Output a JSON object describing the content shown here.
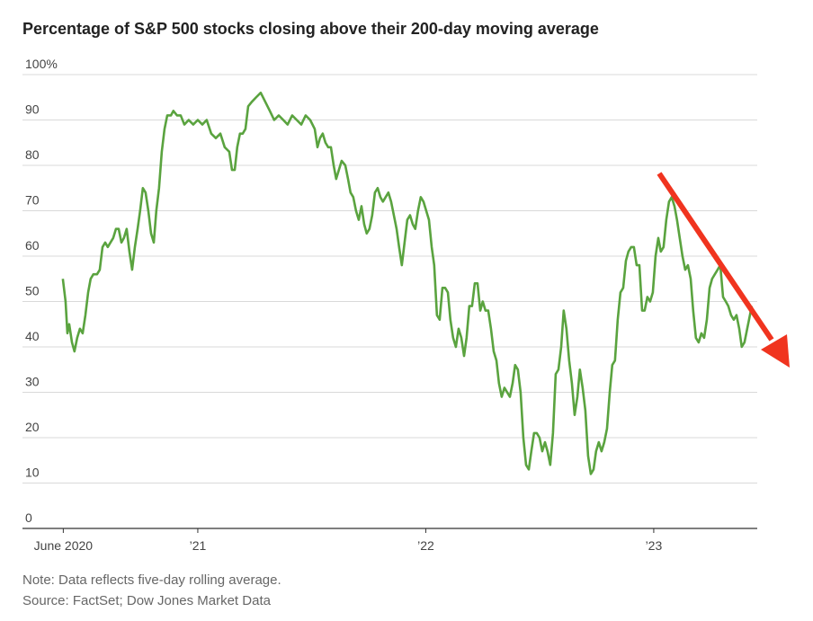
{
  "chart_data": {
    "type": "line",
    "title": "Percentage of S&P 500 stocks closing above their 200-day moving average",
    "notes": [
      "Note: Data reflects five-day rolling average.",
      "Source: FactSet; Dow Jones Market Data"
    ],
    "xlim": [
      2020.231,
      2023.454
    ],
    "xticks": [
      {
        "value": 2020.41,
        "label": "June 2020"
      },
      {
        "value": 2021,
        "label": "’21"
      },
      {
        "value": 2022,
        "label": "’22"
      },
      {
        "value": 2023,
        "label": "’23"
      }
    ],
    "ylim": [
      0,
      100
    ],
    "yticks": [
      0,
      10,
      20,
      30,
      40,
      50,
      60,
      70,
      80,
      90,
      {
        "value": 100,
        "label": "100%"
      }
    ],
    "grid": true,
    "x": [
      2020.408,
      2020.42,
      2020.428,
      2020.436,
      2020.448,
      2020.459,
      2020.471,
      2020.483,
      2020.495,
      2020.507,
      2020.519,
      2020.53,
      2020.542,
      2020.558,
      2020.57,
      2020.582,
      2020.594,
      2020.605,
      2020.617,
      2020.629,
      2020.641,
      2020.653,
      2020.665,
      2020.676,
      2020.688,
      2020.7,
      2020.712,
      2020.724,
      2020.736,
      2020.747,
      2020.759,
      2020.771,
      2020.783,
      2020.795,
      2020.807,
      2020.818,
      2020.83,
      2020.842,
      2020.854,
      2020.866,
      2020.882,
      2020.893,
      2020.909,
      2020.925,
      2020.941,
      2020.96,
      2020.98,
      2021.0,
      2021.02,
      2021.039,
      2021.059,
      2021.079,
      2021.099,
      2021.118,
      2021.138,
      2021.15,
      2021.162,
      2021.173,
      2021.185,
      2021.197,
      2021.209,
      2021.221,
      2021.237,
      2021.256,
      2021.276,
      2021.296,
      2021.316,
      2021.335,
      2021.355,
      2021.375,
      2021.394,
      2021.414,
      2021.434,
      2021.454,
      2021.473,
      2021.493,
      2021.513,
      2021.525,
      2021.536,
      2021.548,
      2021.56,
      2021.572,
      2021.584,
      2021.596,
      2021.607,
      2021.619,
      2021.631,
      2021.647,
      2021.659,
      2021.67,
      2021.682,
      2021.694,
      2021.706,
      2021.718,
      2021.73,
      2021.741,
      2021.753,
      2021.765,
      2021.777,
      2021.789,
      2021.801,
      2021.812,
      2021.824,
      2021.836,
      2021.848,
      2021.86,
      2021.872,
      2021.883,
      2021.895,
      2021.907,
      2021.919,
      2021.931,
      2021.943,
      2021.954,
      2021.966,
      2021.978,
      2021.99,
      2022.002,
      2022.014,
      2022.026,
      2022.037,
      2022.049,
      2022.061,
      2022.073,
      2022.085,
      2022.097,
      2022.108,
      2022.12,
      2022.132,
      2022.144,
      2022.156,
      2022.168,
      2022.179,
      2022.191,
      2022.203,
      2022.215,
      2022.227,
      2022.239,
      2022.25,
      2022.262,
      2022.274,
      2022.286,
      2022.298,
      2022.31,
      2022.321,
      2022.333,
      2022.345,
      2022.357,
      2022.369,
      2022.381,
      2022.392,
      2022.404,
      2022.416,
      2022.428,
      2022.44,
      2022.452,
      2022.463,
      2022.475,
      2022.487,
      2022.499,
      2022.511,
      2022.523,
      2022.534,
      2022.546,
      2022.558,
      2022.57,
      2022.582,
      2022.594,
      2022.605,
      2022.617,
      2022.629,
      2022.641,
      2022.653,
      2022.665,
      2022.676,
      2022.688,
      2022.7,
      2022.712,
      2022.724,
      2022.736,
      2022.747,
      2022.759,
      2022.771,
      2022.783,
      2022.795,
      2022.807,
      2022.818,
      2022.83,
      2022.842,
      2022.854,
      2022.866,
      2022.878,
      2022.889,
      2022.901,
      2022.913,
      2022.925,
      2022.937,
      2022.949,
      2022.96,
      2022.972,
      2022.984,
      2022.996,
      2023.008,
      2023.02,
      2023.031,
      2023.043,
      2023.055,
      2023.067,
      2023.079,
      2023.091,
      2023.102,
      2023.114,
      2023.126,
      2023.138,
      2023.15,
      2023.162,
      2023.173,
      2023.185,
      2023.197,
      2023.209,
      2023.221,
      2023.233,
      2023.245,
      2023.256,
      2023.268,
      2023.28,
      2023.292,
      2023.304,
      2023.316,
      2023.327,
      2023.339,
      2023.351,
      2023.363,
      2023.375,
      2023.386,
      2023.398,
      2023.41,
      2023.422,
      2023.43
    ],
    "series": [
      {
        "color": "#5aa33f",
        "values": [
          55,
          50,
          43,
          45,
          41,
          39,
          42,
          44,
          43,
          47,
          52,
          55,
          56,
          56,
          57,
          62,
          63,
          62,
          63,
          64,
          66,
          66,
          63,
          64,
          66,
          61,
          57,
          62,
          66,
          70,
          75,
          74,
          70,
          65,
          63,
          70,
          75,
          83,
          88,
          91,
          91,
          92,
          91,
          91,
          89,
          90,
          89,
          90,
          89,
          90,
          87,
          86,
          87,
          84,
          83,
          79,
          79,
          84,
          87,
          87,
          88,
          93,
          94,
          95,
          96,
          94,
          92,
          90,
          91,
          90,
          89,
          91,
          90,
          89,
          91,
          90,
          88,
          84,
          86,
          87,
          85,
          84,
          84,
          80,
          77,
          79,
          81,
          80,
          77,
          74,
          73,
          70,
          68,
          71,
          67,
          65,
          66,
          69,
          74,
          75,
          73,
          72,
          73,
          74,
          72,
          69,
          66,
          62,
          58,
          63,
          68,
          69,
          67,
          66,
          70,
          73,
          72,
          70,
          68,
          62,
          58,
          47,
          46,
          53,
          53,
          52,
          46,
          42,
          40,
          44,
          42,
          38,
          42,
          49,
          49,
          54,
          54,
          48,
          50,
          48,
          48,
          44,
          39,
          37,
          32,
          29,
          31,
          30,
          29,
          32,
          36,
          35,
          30,
          20,
          14,
          13,
          17,
          21,
          21,
          20,
          17,
          19,
          17,
          14,
          21,
          34,
          35,
          40,
          48,
          44,
          37,
          32,
          25,
          29,
          35,
          31,
          26,
          16,
          12,
          13,
          17,
          19,
          17,
          19,
          22,
          30,
          36,
          37,
          46,
          52,
          53,
          59,
          61,
          62,
          62,
          58,
          58,
          48,
          48,
          51,
          50,
          52,
          60,
          64,
          61,
          62,
          68,
          72,
          73,
          71,
          68,
          64,
          60,
          57,
          58,
          55,
          48,
          42,
          41,
          43,
          42,
          46,
          53,
          55,
          56,
          57,
          58,
          51,
          50,
          49,
          47,
          46,
          47,
          44,
          40,
          41,
          44,
          47,
          49
        ]
      }
    ]
  }
}
